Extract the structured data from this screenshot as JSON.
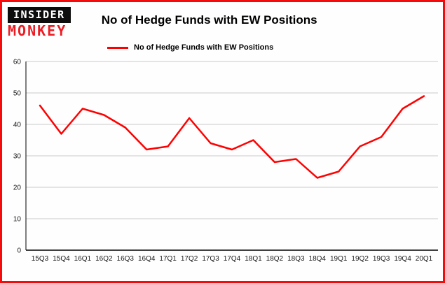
{
  "header": {
    "logo_top": "INSIDER",
    "logo_bottom": "MONKEY",
    "title": "No of Hedge Funds with EW Positions"
  },
  "legend": {
    "label": "No of Hedge Funds with EW Positions",
    "color": "#ff0000"
  },
  "chart_data": {
    "type": "line",
    "categories": [
      "15Q3",
      "15Q4",
      "16Q1",
      "16Q2",
      "16Q3",
      "16Q4",
      "17Q1",
      "17Q2",
      "17Q3",
      "17Q4",
      "18Q1",
      "18Q2",
      "18Q3",
      "18Q4",
      "19Q1",
      "19Q2",
      "19Q3",
      "19Q4",
      "20Q1"
    ],
    "series": [
      {
        "name": "No of Hedge Funds with EW Positions",
        "values": [
          46,
          37,
          45,
          43,
          39,
          32,
          33,
          42,
          34,
          32,
          35,
          28,
          29,
          23,
          25,
          33,
          36,
          45,
          49
        ]
      }
    ],
    "title": "No of Hedge Funds with EW Positions",
    "xlabel": "",
    "ylabel": "",
    "ylim": [
      0,
      60
    ],
    "ytick_step": 10,
    "yticks": [
      0,
      10,
      20,
      30,
      40,
      50,
      60
    ],
    "grid": true,
    "legend_position": "top",
    "line_color": "#ff0000"
  },
  "colors": {
    "frame": "#f40b0b",
    "grid": "#c9c9c9",
    "axis": "#000000",
    "line": "#ff0000"
  }
}
